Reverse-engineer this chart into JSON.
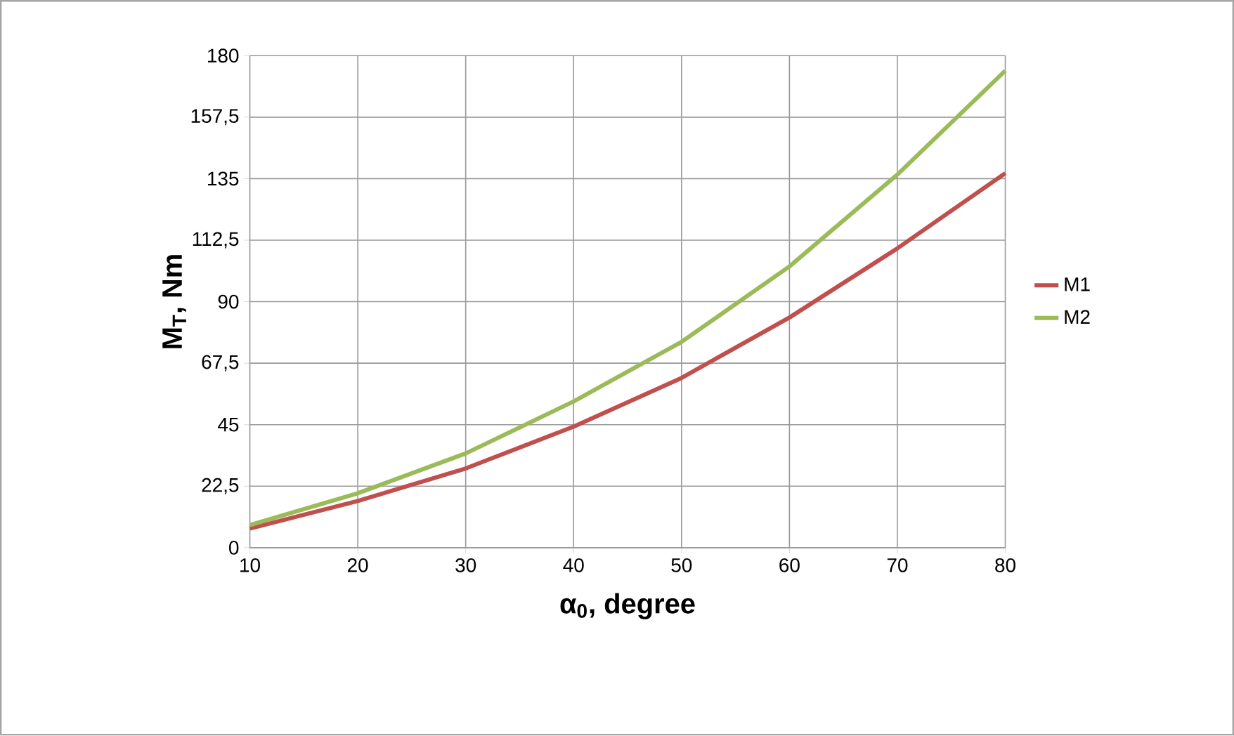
{
  "chart_data": {
    "type": "line",
    "xlabel": "α$_{0}$, degree",
    "ylabel": "M$_{T}$, Nm",
    "x": [
      10,
      20,
      30,
      40,
      50,
      60,
      70,
      80
    ],
    "series": [
      {
        "name": "M1",
        "color": "#c0504d",
        "values": [
          7.0,
          17.1,
          29.0,
          44.3,
          62.1,
          84.2,
          109.5,
          137.0
        ]
      },
      {
        "name": "M2",
        "color": "#9bbb59",
        "values": [
          8.3,
          19.9,
          34.5,
          53.5,
          75.3,
          102.9,
          136.5,
          174.5
        ]
      }
    ],
    "xlim": [
      10,
      80
    ],
    "xticks": [
      10,
      20,
      30,
      40,
      50,
      60,
      70,
      80
    ],
    "ylim": [
      0,
      180
    ],
    "yticks": [
      0,
      {
        "value": 22.5,
        "label": "22,5"
      },
      45,
      {
        "value": 67.5,
        "label": "67,5"
      },
      90,
      {
        "value": 112.5,
        "label": "112,5"
      },
      135,
      {
        "value": 157.5,
        "label": "157,5"
      },
      180
    ],
    "grid": true,
    "legend": "right",
    "marker": "none",
    "line_style": "solid"
  }
}
